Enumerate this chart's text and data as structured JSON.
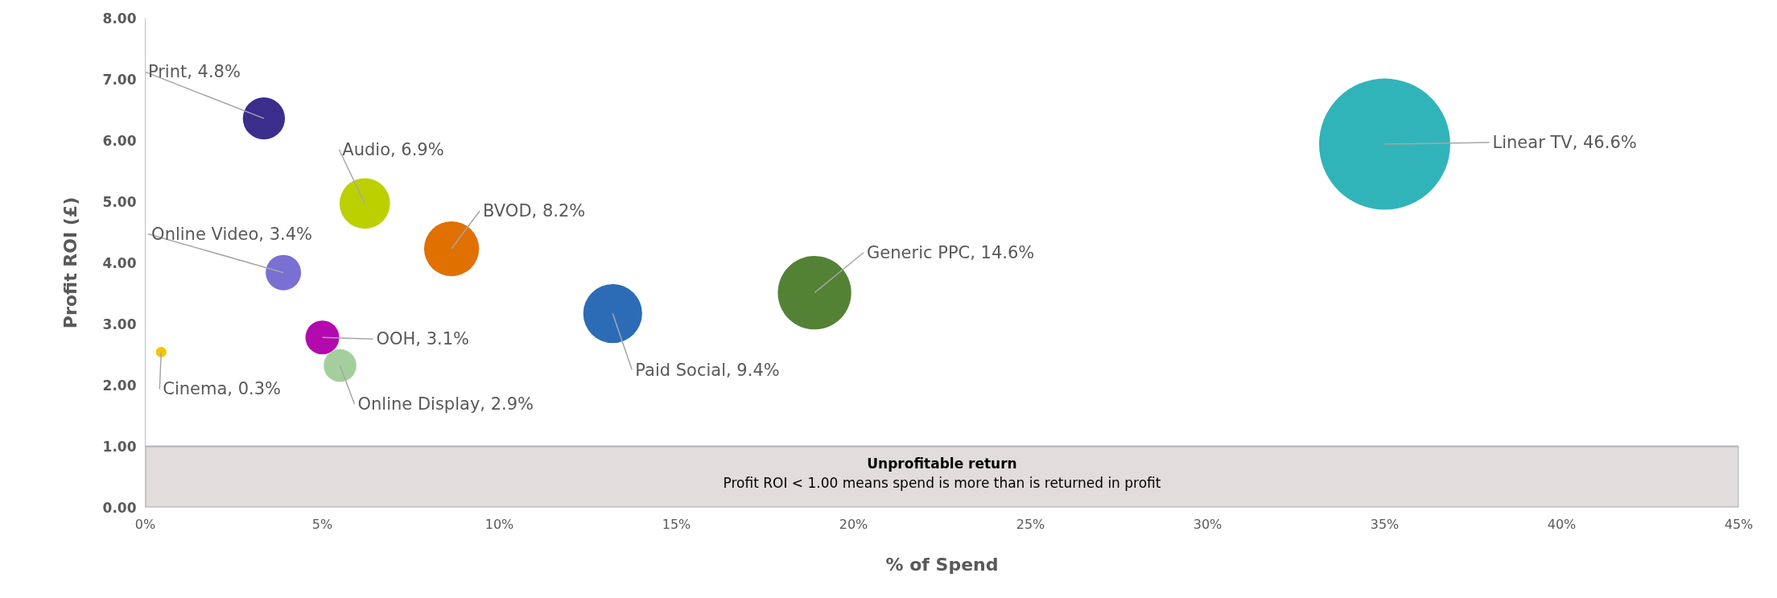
{
  "chart_data": {
    "type": "bubble",
    "xlabel": "% of Spend",
    "ylabel": "Profit ROI (£)",
    "series": [
      {
        "color": "#3b2d8c",
        "x": [
          3.35
        ],
        "values": [
          6.36
        ],
        "sizes": [
          4.8
        ],
        "value_labels": [
          "Print, 4.8%"
        ]
      },
      {
        "color": "#bcd000",
        "x": [
          6.2
        ],
        "values": [
          4.97
        ],
        "sizes": [
          6.9
        ],
        "value_labels": [
          "Audio, 6.9%"
        ]
      },
      {
        "color": "#e07000",
        "x": [
          8.65
        ],
        "values": [
          4.23
        ],
        "sizes": [
          8.2
        ],
        "value_labels": [
          "BVOD, 8.2%"
        ]
      },
      {
        "color": "#7a6fd2",
        "x": [
          3.9
        ],
        "values": [
          3.84
        ],
        "sizes": [
          3.4
        ],
        "value_labels": [
          "Online Video, 3.4%"
        ]
      },
      {
        "color": "#b30aae",
        "x": [
          5.0
        ],
        "values": [
          2.78
        ],
        "sizes": [
          3.1
        ],
        "value_labels": [
          "OOH, 3.1%"
        ]
      },
      {
        "color": "#a4cf9c",
        "x": [
          5.5
        ],
        "values": [
          2.32
        ],
        "sizes": [
          2.9
        ],
        "value_labels": [
          "Online Display, 2.9%"
        ]
      },
      {
        "color": "#f5c400",
        "x": [
          0.45
        ],
        "values": [
          2.54
        ],
        "sizes": [
          0.3
        ],
        "value_labels": [
          "Cinema, 0.3%"
        ]
      },
      {
        "color": "#2c6bb6",
        "x": [
          13.2
        ],
        "values": [
          3.17
        ],
        "sizes": [
          9.4
        ],
        "value_labels": [
          "Paid Social, 9.4%"
        ]
      },
      {
        "color": "#548235",
        "x": [
          18.9
        ],
        "values": [
          3.51
        ],
        "sizes": [
          14.6
        ],
        "value_labels": [
          "Generic PPC, 14.6%"
        ]
      },
      {
        "color": "#31b4b9",
        "x": [
          35.0
        ],
        "values": [
          5.94
        ],
        "sizes": [
          46.6
        ],
        "value_labels": [
          "Linear TV, 46.6%"
        ]
      }
    ],
    "xlim": [
      0,
      45
    ],
    "ylim": [
      0,
      8
    ],
    "xticks": [
      {
        "value": 0,
        "label": "0%"
      },
      {
        "value": 5,
        "label": "5%"
      },
      {
        "value": 10,
        "label": "10%"
      },
      {
        "value": 15,
        "label": "15%"
      },
      {
        "value": 20,
        "label": "20%"
      },
      {
        "value": 25,
        "label": "25%"
      },
      {
        "value": 30,
        "label": "30%"
      },
      {
        "value": 35,
        "label": "35%"
      },
      {
        "value": 40,
        "label": "40%"
      },
      {
        "value": 45,
        "label": "45%"
      }
    ],
    "yticks": [
      {
        "value": 0,
        "label": "0.00"
      },
      {
        "value": 1,
        "label": "1.00"
      },
      {
        "value": 2,
        "label": "2.00"
      },
      {
        "value": 3,
        "label": "3.00"
      },
      {
        "value": 4,
        "label": "4.00"
      },
      {
        "value": 5,
        "label": "5.00"
      },
      {
        "value": 6,
        "label": "6.00"
      },
      {
        "value": 7,
        "label": "7.00"
      },
      {
        "value": 8,
        "label": "8.00"
      }
    ],
    "bands": [
      {
        "axis": "y",
        "from": 0,
        "to": 1,
        "label": "Unprofitable return",
        "color": "#e2dcdc"
      }
    ],
    "annotations": [
      "Profit ROI < 1.00 means spend is more than is returned in profit"
    ],
    "grid": false,
    "legend": false,
    "marker": "circle"
  }
}
